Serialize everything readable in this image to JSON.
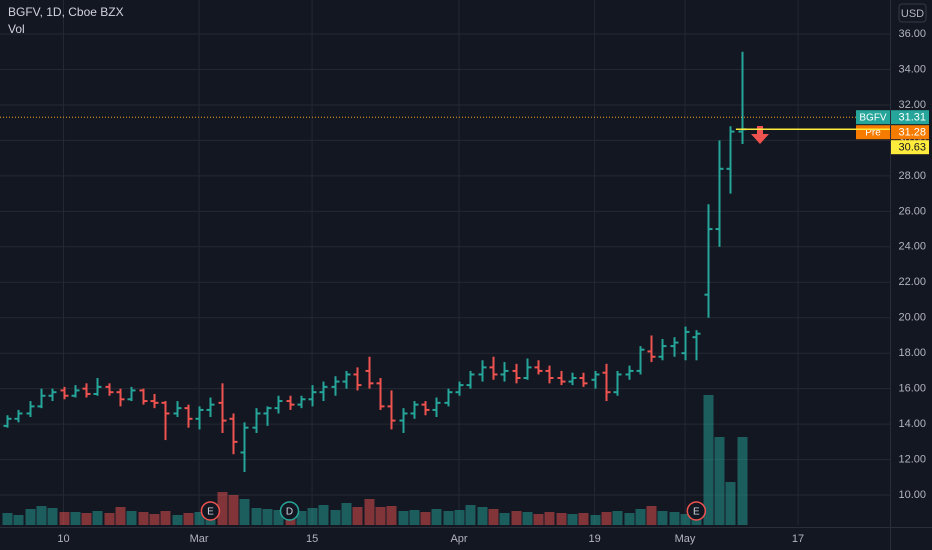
{
  "chart_data": {
    "type": "ohlc",
    "title": "BGFV, 1D, Cboe BZX",
    "subtitle": "Vol",
    "currency": "USD",
    "up_color": "#26a69a",
    "down_color": "#ef5350",
    "grid": true,
    "xlim": [
      -0.62,
      78.14
    ],
    "xticks": [
      {
        "value": 5,
        "label": "10"
      },
      {
        "value": 17,
        "label": "Mar"
      },
      {
        "value": 27,
        "label": "15"
      },
      {
        "value": 40,
        "label": "Apr"
      },
      {
        "value": 52,
        "label": "19"
      },
      {
        "value": 60,
        "label": "May"
      },
      {
        "value": 70,
        "label": "17"
      }
    ],
    "ylim": [
      8.31,
      37.92
    ],
    "yticks": [
      {
        "value": 10,
        "label": "10.00"
      },
      {
        "value": 12,
        "label": "12.00"
      },
      {
        "value": 14,
        "label": "14.00"
      },
      {
        "value": 16,
        "label": "16.00"
      },
      {
        "value": 18,
        "label": "18.00"
      },
      {
        "value": 20,
        "label": "20.00"
      },
      {
        "value": 22,
        "label": "22.00"
      },
      {
        "value": 24,
        "label": "24.00"
      },
      {
        "value": 26,
        "label": "26.00"
      },
      {
        "value": 28,
        "label": "28.00"
      },
      {
        "value": 30,
        "label": "30.00"
      },
      {
        "value": 32,
        "label": "32.00"
      },
      {
        "value": 34,
        "label": "34.00"
      },
      {
        "value": 36,
        "label": "36.00"
      }
    ],
    "volume_lim": [
      0,
      14
    ],
    "open": [
      13.9,
      14.3,
      14.6,
      15.0,
      15.6,
      15.9,
      15.6,
      16.0,
      15.7,
      16.1,
      15.8,
      15.4,
      15.9,
      15.3,
      15.2,
      14.6,
      14.9,
      14.3,
      14.8,
      15.2,
      14.3,
      12.4,
      13.8,
      14.6,
      14.9,
      15.3,
      15.1,
      15.4,
      15.8,
      16.1,
      16.4,
      16.8,
      17.0,
      16.3,
      15.0,
      14.2,
      14.6,
      15.1,
      14.8,
      15.2,
      15.8,
      16.2,
      16.8,
      17.2,
      16.8,
      17.0,
      16.6,
      17.2,
      17.0,
      16.6,
      16.4,
      16.6,
      16.5,
      16.9,
      15.8,
      16.8,
      17.0,
      18.1,
      17.8,
      18.4,
      18.0,
      18.9,
      21.3,
      25.0,
      28.4,
      30.5
    ],
    "high": [
      14.5,
      14.8,
      15.3,
      16.0,
      16.0,
      16.1,
      16.2,
      16.3,
      16.6,
      16.3,
      16.0,
      16.1,
      16.0,
      15.7,
      15.3,
      15.3,
      15.1,
      15.0,
      15.5,
      16.3,
      14.6,
      14.1,
      14.9,
      15.0,
      15.6,
      15.6,
      15.6,
      16.2,
      16.4,
      16.7,
      17.0,
      17.2,
      17.8,
      16.6,
      15.9,
      14.9,
      15.3,
      15.3,
      15.5,
      16.0,
      16.4,
      17.0,
      17.6,
      17.8,
      17.5,
      17.4,
      17.7,
      17.6,
      17.3,
      17.0,
      16.9,
      16.9,
      17.0,
      17.4,
      17.0,
      17.3,
      18.4,
      19.0,
      18.8,
      18.9,
      19.5,
      19.3,
      26.4,
      30.0,
      30.8,
      35.0
    ],
    "low": [
      13.8,
      14.1,
      14.4,
      14.9,
      15.3,
      15.4,
      15.5,
      15.5,
      15.6,
      15.6,
      15.0,
      15.3,
      15.1,
      14.9,
      13.1,
      14.4,
      13.8,
      13.7,
      14.4,
      13.5,
      12.3,
      11.3,
      13.5,
      13.9,
      14.6,
      14.8,
      14.9,
      15.0,
      15.3,
      15.6,
      16.0,
      15.9,
      16.0,
      14.8,
      13.7,
      13.5,
      14.3,
      14.5,
      14.4,
      15.0,
      15.6,
      16.0,
      16.4,
      16.5,
      16.4,
      16.3,
      16.5,
      16.8,
      16.3,
      16.2,
      16.2,
      16.1,
      16.0,
      15.3,
      15.6,
      16.5,
      16.8,
      17.5,
      17.6,
      17.8,
      17.6,
      17.6,
      20.0,
      24.0,
      27.0,
      29.8
    ],
    "close": [
      14.3,
      14.6,
      15.0,
      15.6,
      15.8,
      15.6,
      15.9,
      15.7,
      16.1,
      15.8,
      15.4,
      15.9,
      15.3,
      15.2,
      14.6,
      14.9,
      14.3,
      14.8,
      15.1,
      14.2,
      13.0,
      13.8,
      14.6,
      14.9,
      15.3,
      15.1,
      15.4,
      15.8,
      16.1,
      16.4,
      16.8,
      16.2,
      16.3,
      15.0,
      14.2,
      14.6,
      15.1,
      14.8,
      15.2,
      15.8,
      16.2,
      16.8,
      17.2,
      16.8,
      17.0,
      16.6,
      17.2,
      17.0,
      16.6,
      16.4,
      16.6,
      16.3,
      16.8,
      15.8,
      16.8,
      17.0,
      18.2,
      17.8,
      18.4,
      18.6,
      19.2,
      19.1,
      25.0,
      28.4,
      30.5,
      30.63
    ],
    "volume": [
      1.2,
      1.0,
      1.6,
      1.9,
      1.7,
      1.3,
      1.3,
      1.2,
      1.4,
      1.2,
      1.8,
      1.4,
      1.3,
      1.1,
      1.4,
      1.0,
      1.2,
      1.3,
      1.5,
      3.3,
      3.0,
      2.6,
      1.7,
      1.6,
      1.5,
      1.2,
      1.4,
      1.7,
      2.0,
      1.5,
      2.2,
      1.8,
      2.6,
      1.8,
      1.9,
      1.4,
      1.5,
      1.3,
      1.6,
      1.4,
      1.5,
      2.0,
      1.8,
      1.6,
      1.2,
      1.4,
      1.3,
      1.1,
      1.3,
      1.2,
      1.1,
      1.2,
      1.0,
      1.3,
      1.4,
      1.2,
      1.6,
      1.9,
      1.4,
      1.3,
      1.1,
      1.6,
      13.0,
      8.8,
      4.3,
      8.8
    ],
    "events": [
      {
        "index": 18,
        "label": "E",
        "color": "#ef5350"
      },
      {
        "index": 25,
        "label": "D",
        "color": "#26a69a"
      },
      {
        "index": 61,
        "label": "E",
        "color": "#ef5350"
      }
    ],
    "price_labels": [
      {
        "name": "BGFV",
        "value": 31.31,
        "color": "#26a69a",
        "line": "dotted"
      },
      {
        "name": "Pre",
        "value": 31.28,
        "color": "#f57c00"
      },
      {
        "value": 30.63,
        "color": "#ffeb3b",
        "line": "solid"
      }
    ]
  }
}
